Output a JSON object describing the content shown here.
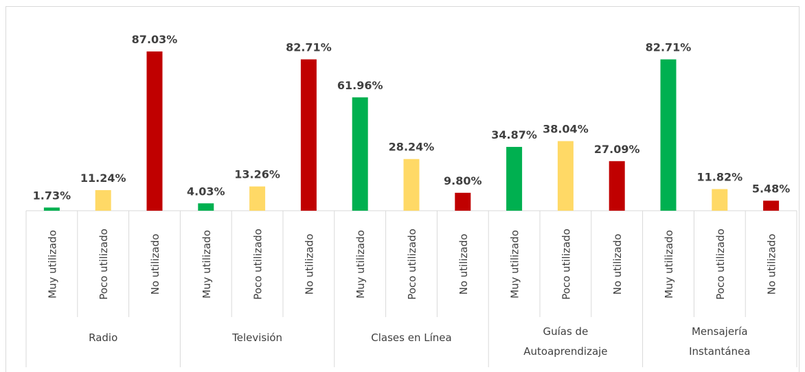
{
  "chart_data": {
    "type": "bar",
    "categories": [
      "Radio",
      "Televisión",
      "Clases en Línea",
      "Guías de Autoaprendizaje",
      "Mensajería Instantánea"
    ],
    "series": [
      {
        "name": "Muy utilizado",
        "color": "#00b050",
        "values": [
          1.73,
          4.03,
          61.96,
          34.87,
          82.71
        ],
        "value_labels": [
          "1.73%",
          "4.03%",
          "61.96%",
          "34.87%",
          "82.71%"
        ]
      },
      {
        "name": "Poco utilizado",
        "color": "#ffd966",
        "values": [
          11.24,
          13.26,
          28.24,
          38.04,
          11.82
        ],
        "value_labels": [
          "11.24%",
          "13.26%",
          "28.24%",
          "38.04%",
          "11.82%"
        ]
      },
      {
        "name": "No utilizado",
        "color": "#c00000",
        "values": [
          87.03,
          82.71,
          9.8,
          27.09,
          5.48
        ],
        "value_labels": [
          "87.03%",
          "82.71%",
          "9.80%",
          "27.09%",
          "5.48%"
        ]
      }
    ]
  }
}
